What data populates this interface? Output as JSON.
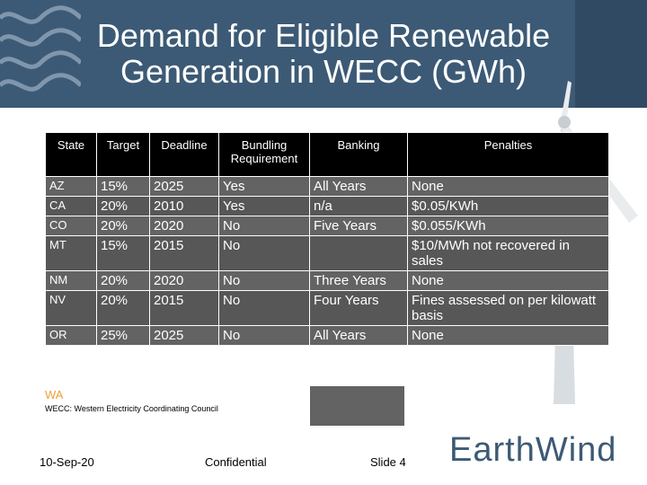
{
  "slide": {
    "title_line1": "Demand for Eligible Renewable",
    "title_line2": "Generation in WECC (GWh)"
  },
  "table": {
    "headers": [
      "State",
      "Target",
      "Deadline",
      "Bundling Requirement",
      "Banking",
      "Penalties"
    ],
    "rows": [
      {
        "state": "AZ",
        "target": "15%",
        "deadline": "2025",
        "bundling": "Yes",
        "banking": "All Years",
        "penalties": "None"
      },
      {
        "state": "CA",
        "target": "20%",
        "deadline": "2010",
        "bundling": "Yes",
        "banking": "n/a",
        "penalties": "$0.05/KWh"
      },
      {
        "state": "CO",
        "target": "20%",
        "deadline": "2020",
        "bundling": "No",
        "banking": "Five Years",
        "penalties": "$0.055/KWh"
      },
      {
        "state": "MT",
        "target": "15%",
        "deadline": "2015",
        "bundling": "No",
        "banking": "",
        "penalties": "$10/MWh not recovered in sales"
      },
      {
        "state": "NM",
        "target": "20%",
        "deadline": "2020",
        "bundling": "No",
        "banking": "Three Years",
        "penalties": "None"
      },
      {
        "state": "NV",
        "target": "20%",
        "deadline": "2015",
        "bundling": "No",
        "banking": "Four Years",
        "penalties": "Fines assessed on per kilowatt basis"
      },
      {
        "state": "OR",
        "target": "25%",
        "deadline": "2025",
        "bundling": "No",
        "banking": "All Years",
        "penalties": "None"
      }
    ]
  },
  "partial_row": {
    "state": "WA",
    "fragment": "0"
  },
  "footnote": "WECC: Western Electricity Coordinating Council",
  "footer": {
    "date": "10-Sep-20",
    "confidential": "Confidential",
    "slide_number": "Slide 4"
  },
  "logo": {
    "text": "EarthWind"
  },
  "colors": {
    "banner": "#3c5a75",
    "header_bg": "#000000",
    "row_bg": "#636363",
    "wa_text": "#f0a030"
  }
}
